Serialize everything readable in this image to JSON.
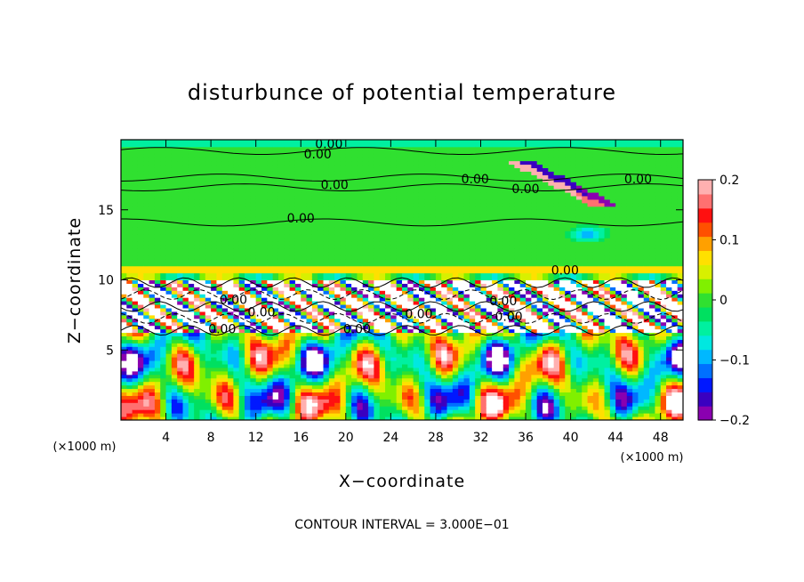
{
  "chart_data": {
    "type": "heatmap",
    "title": "disturbunce of potential temperature",
    "xlabel": "X−coordinate",
    "ylabel": "Z−coordinate",
    "x_unit": "(×1000 m)",
    "x_unit_right": "(×1000 m)",
    "contour_note": "CONTOUR INTERVAL = 3.000E−01",
    "xlim": [
      0,
      50
    ],
    "ylim": [
      0,
      20
    ],
    "x_ticks": [
      4,
      8,
      12,
      16,
      20,
      24,
      28,
      32,
      36,
      40,
      44,
      48
    ],
    "y_ticks": [
      5,
      10,
      15
    ],
    "colorbar": {
      "range": [
        -0.2,
        0.2
      ],
      "tick_values": [
        0.2,
        0.1,
        0,
        -0.1,
        -0.2
      ],
      "tick_labels": [
        "0.2",
        "0.1",
        "0",
        "−0.1",
        "−0.2"
      ],
      "colors": [
        "#8a00b0",
        "#3a00c0",
        "#0018ff",
        "#0070ff",
        "#00b8ff",
        "#00e8e0",
        "#00f0a0",
        "#00e060",
        "#30e030",
        "#80f000",
        "#d8f000",
        "#ffe000",
        "#ffa000",
        "#ff5000",
        "#ff1010",
        "#ff7070",
        "#ffb0b0"
      ]
    },
    "contour_labels": [
      {
        "text": "0.00",
        "x": 18.5,
        "z": 19.7
      },
      {
        "text": "0.00",
        "x": 17.5,
        "z": 19.0
      },
      {
        "text": "0.00",
        "x": 19.0,
        "z": 16.8
      },
      {
        "text": "0.00",
        "x": 31.5,
        "z": 17.2
      },
      {
        "text": "0.00",
        "x": 46.0,
        "z": 17.2
      },
      {
        "text": "0.00",
        "x": 16.0,
        "z": 14.4
      },
      {
        "text": "0.00",
        "x": 36.0,
        "z": 16.5
      },
      {
        "text": "0.00",
        "x": 39.5,
        "z": 10.7
      },
      {
        "text": "0.00",
        "x": 10.0,
        "z": 8.6
      },
      {
        "text": "0.00",
        "x": 12.5,
        "z": 7.7
      },
      {
        "text": "0.00",
        "x": 26.5,
        "z": 7.6
      },
      {
        "text": "0.00",
        "x": 34.0,
        "z": 8.5
      },
      {
        "text": "0.00",
        "x": 34.5,
        "z": 7.4
      },
      {
        "text": "0.00",
        "x": 9.0,
        "z": 6.5
      },
      {
        "text": "0.00",
        "x": 21.0,
        "z": 6.5
      }
    ],
    "grid": false,
    "legend": "colorbar-right"
  }
}
